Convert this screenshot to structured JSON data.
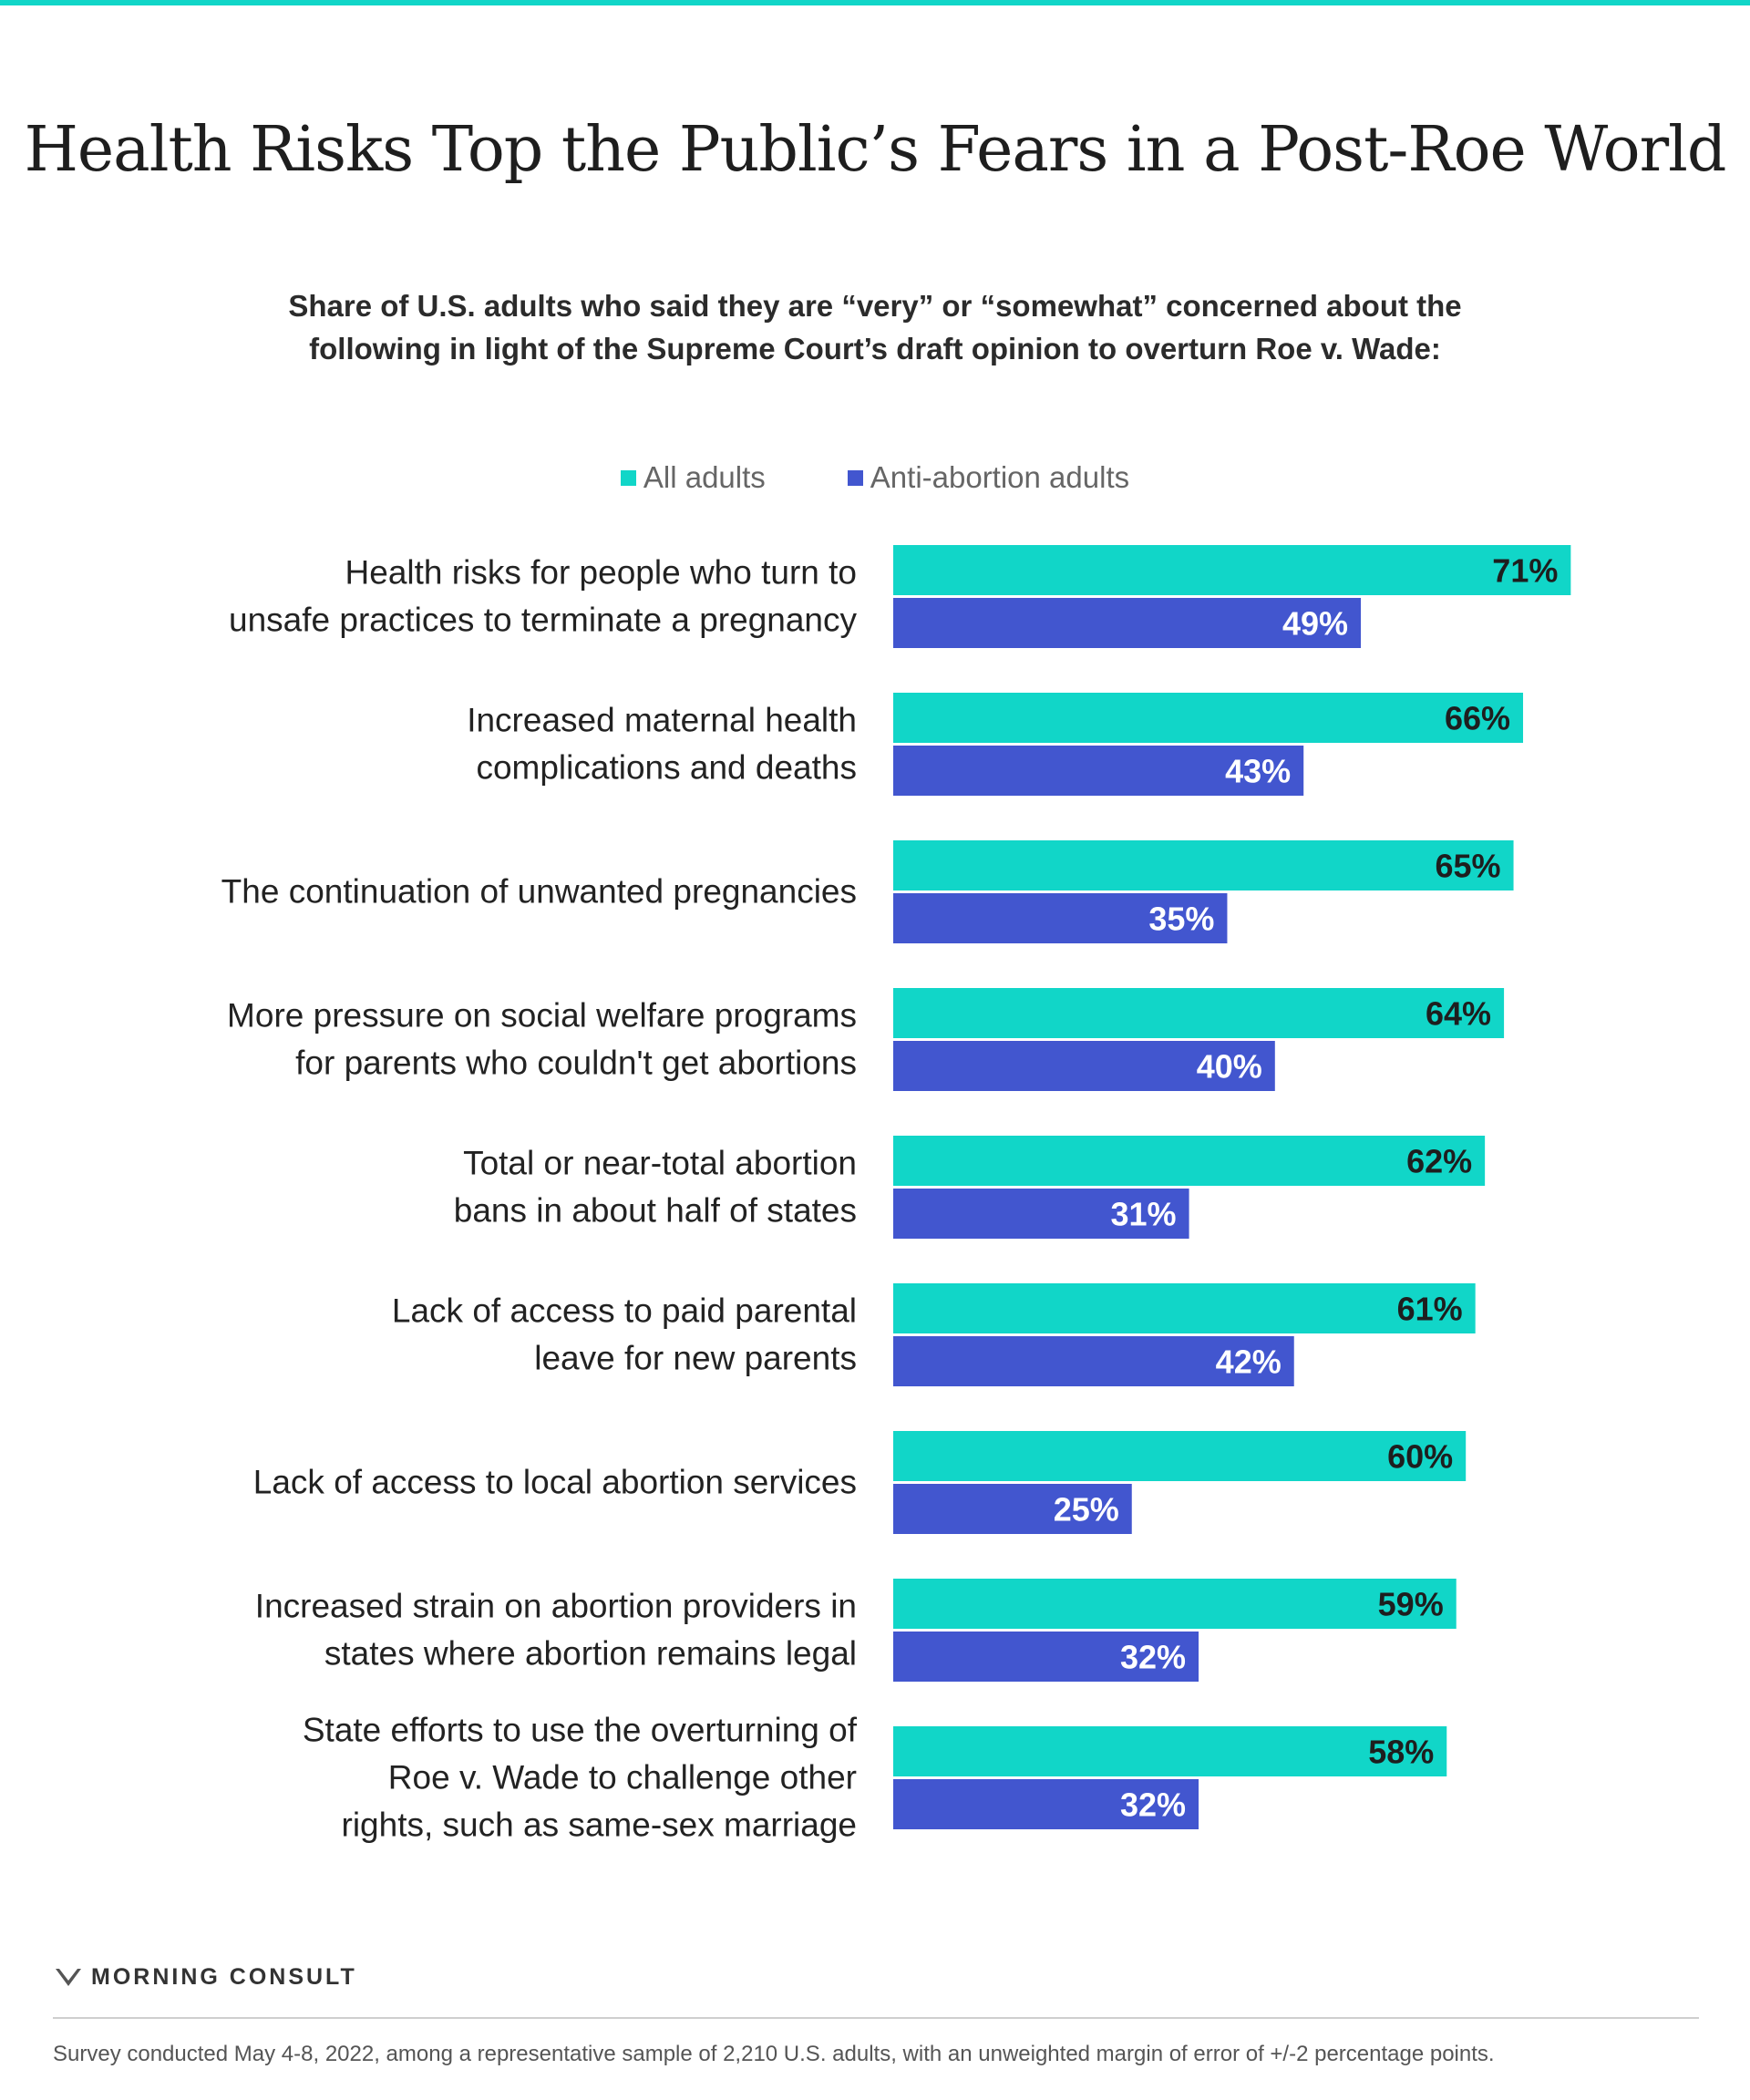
{
  "colors": {
    "accent": "#11d6c8",
    "all_adults": "#11d6c8",
    "anti_abortion": "#4256cf",
    "label_on_teal": "#1e1e1e",
    "label_on_purple": "#ffffff"
  },
  "header": {
    "title": "Health Risks Top the Public’s Fears in a Post-Roe World",
    "subtitle_line1": "Share of U.S. adults who said they are “very” or “somewhat” concerned about the",
    "subtitle_line2": "following in light of the Supreme Court’s draft opinion to overturn Roe v. Wade:"
  },
  "legend": {
    "all_label": "All adults",
    "anti_label": "Anti-abortion adults"
  },
  "chart_data": {
    "type": "bar",
    "orientation": "horizontal",
    "xlim": [
      0,
      100
    ],
    "grid": false,
    "value_suffix": "%",
    "categories": [
      [
        "Health risks for people who turn to",
        "unsafe practices to terminate a pregnancy"
      ],
      [
        "Increased maternal health",
        "complications and deaths"
      ],
      [
        "The continuation of unwanted pregnancies"
      ],
      [
        "More pressure on social welfare programs",
        "for parents who couldn't get abortions"
      ],
      [
        "Total or near-total abortion",
        "bans in about half of states"
      ],
      [
        "Lack of access to paid parental",
        "leave for new parents"
      ],
      [
        "Lack of access to local abortion services"
      ],
      [
        "Increased strain on abortion providers in",
        "states where abortion remains legal"
      ],
      [
        "State efforts to use the overturning of",
        "Roe v. Wade to challenge other",
        "rights, such as same-sex marriage"
      ]
    ],
    "series": [
      {
        "name": "All adults",
        "values": [
          71,
          66,
          65,
          64,
          62,
          61,
          60,
          59,
          58
        ]
      },
      {
        "name": "Anti-abortion adults",
        "values": [
          49,
          43,
          35,
          40,
          31,
          42,
          25,
          32,
          32
        ]
      }
    ]
  },
  "footer": {
    "brand": "MORNING CONSULT",
    "note": "Survey conducted May 4-8, 2022, among a representative sample of 2,210 U.S. adults, with an unweighted margin of error of +/-2 percentage points."
  }
}
